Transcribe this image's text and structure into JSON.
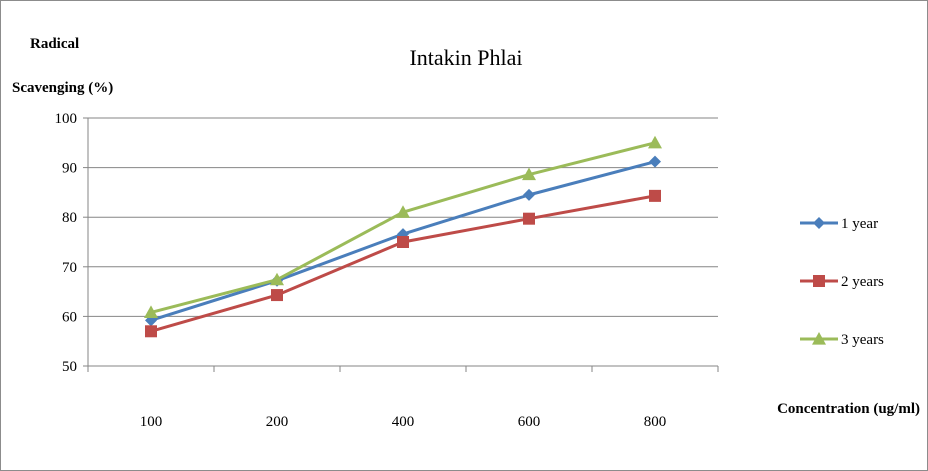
{
  "chart_data": {
    "type": "line",
    "title": "Intakin Phlai",
    "ylabel_lines": [
      "Radical",
      "Scavenging (%)"
    ],
    "xlabel": "Concentration (ug/ml)",
    "categories": [
      "100",
      "200",
      "400",
      "600",
      "800"
    ],
    "ylim": [
      50,
      100
    ],
    "yticks": [
      50,
      60,
      70,
      80,
      90,
      100
    ],
    "grid": true,
    "legend_position": "right",
    "series": [
      {
        "name": "1 year",
        "values": [
          59.2,
          67.2,
          76.6,
          84.5,
          91.2
        ],
        "color": "#4a7ebb",
        "marker": "diamond"
      },
      {
        "name": "2 years",
        "values": [
          57.0,
          64.3,
          75.0,
          79.7,
          84.3
        ],
        "color": "#be4b48",
        "marker": "square"
      },
      {
        "name": "3 years",
        "values": [
          60.8,
          67.4,
          81.0,
          88.6,
          95.0
        ],
        "color": "#9bbb59",
        "marker": "triangle"
      }
    ]
  }
}
